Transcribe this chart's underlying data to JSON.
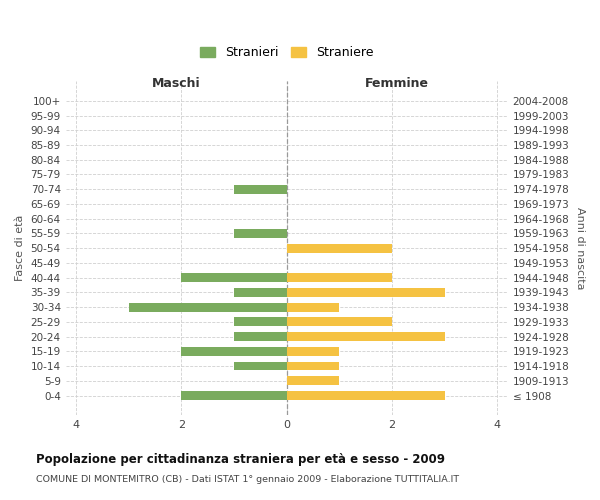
{
  "age_groups": [
    "100+",
    "95-99",
    "90-94",
    "85-89",
    "80-84",
    "75-79",
    "70-74",
    "65-69",
    "60-64",
    "55-59",
    "50-54",
    "45-49",
    "40-44",
    "35-39",
    "30-34",
    "25-29",
    "20-24",
    "15-19",
    "10-14",
    "5-9",
    "0-4"
  ],
  "birth_years": [
    "≤ 1908",
    "1909-1913",
    "1914-1918",
    "1919-1923",
    "1924-1928",
    "1929-1933",
    "1934-1938",
    "1939-1943",
    "1944-1948",
    "1949-1953",
    "1954-1958",
    "1959-1963",
    "1964-1968",
    "1969-1973",
    "1974-1978",
    "1979-1983",
    "1984-1988",
    "1989-1993",
    "1994-1998",
    "1999-2003",
    "2004-2008"
  ],
  "males": [
    0,
    0,
    0,
    0,
    0,
    0,
    1,
    0,
    0,
    1,
    0,
    0,
    2,
    1,
    3,
    1,
    1,
    2,
    1,
    0,
    2
  ],
  "females": [
    0,
    0,
    0,
    0,
    0,
    0,
    0,
    0,
    0,
    0,
    2,
    0,
    2,
    3,
    1,
    2,
    3,
    1,
    1,
    1,
    3
  ],
  "male_color": "#7aab5e",
  "female_color": "#f5c242",
  "background_color": "#ffffff",
  "grid_color": "#d0d0d0",
  "center_line_color": "#999999",
  "title": "Popolazione per cittadinanza straniera per età e sesso - 2009",
  "subtitle": "COMUNE DI MONTEMITRO (CB) - Dati ISTAT 1° gennaio 2009 - Elaborazione TUTTITALIA.IT",
  "xlabel_left": "Maschi",
  "xlabel_right": "Femmine",
  "ylabel_left": "Fasce di età",
  "ylabel_right": "Anni di nascita",
  "legend_male": "Stranieri",
  "legend_female": "Straniere",
  "xlim": 4.2,
  "xticks": [
    -4,
    -2,
    0,
    2,
    4
  ],
  "xticklabels": [
    "4",
    "2",
    "0",
    "2",
    "4"
  ]
}
